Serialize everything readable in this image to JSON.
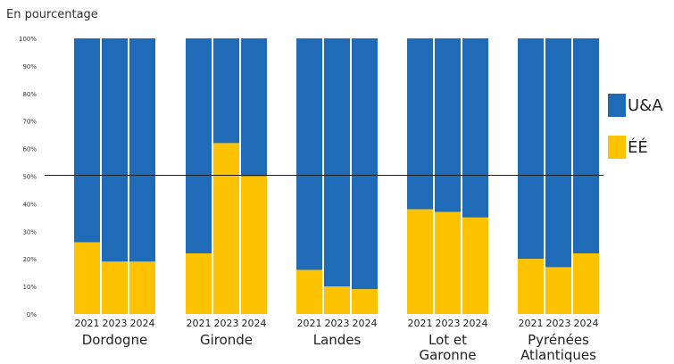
{
  "chart_data": {
    "type": "bar",
    "stacked": true,
    "ylabel": "En pourcentage",
    "ylim": [
      0,
      100
    ],
    "yticks": [
      "0%",
      "10%",
      "20%",
      "30%",
      "40%",
      "50%",
      "60%",
      "70%",
      "80%",
      "90%",
      "100%"
    ],
    "reference_line": 50,
    "groups": [
      {
        "name": "Dordogne",
        "years": [
          "2021",
          "2023",
          "2024"
        ],
        "ee": [
          26,
          19,
          19
        ]
      },
      {
        "name": "Gironde",
        "years": [
          "2021",
          "2023",
          "2024"
        ],
        "ee": [
          22,
          62,
          50
        ]
      },
      {
        "name": "Landes",
        "years": [
          "2021",
          "2023",
          "2024"
        ],
        "ee": [
          16,
          10,
          9
        ]
      },
      {
        "name": "Lot et\nGaronne",
        "years": [
          "2021",
          "2023",
          "2024"
        ],
        "ee": [
          38,
          37,
          35
        ]
      },
      {
        "name": "Pyrénées\nAtlantiques",
        "years": [
          "2021",
          "2023",
          "2024"
        ],
        "ee": [
          20,
          17,
          22
        ]
      }
    ],
    "series": [
      {
        "name": "U&A",
        "color": "#1f6bb8"
      },
      {
        "name": "ÉÉ",
        "color": "#fdc300"
      }
    ]
  }
}
